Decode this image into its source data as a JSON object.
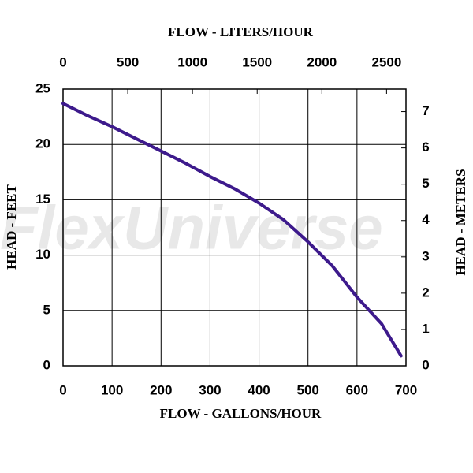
{
  "chart_data": {
    "type": "line",
    "x_label": "FLOW - GALLONS/HOUR",
    "x2_label": "FLOW - LITERS/HOUR",
    "y_label": "HEAD - FEET",
    "y2_label": "HEAD - METERS",
    "watermark": "FlexUniverse",
    "xlim": [
      0,
      700
    ],
    "xticks": [
      0,
      100,
      200,
      300,
      400,
      500,
      600,
      700
    ],
    "x2lim": [
      0,
      2650
    ],
    "x2ticks": [
      0,
      500,
      1000,
      1500,
      2000,
      2500
    ],
    "ylim": [
      0,
      25
    ],
    "yticks": [
      0,
      5,
      10,
      15,
      20,
      25
    ],
    "y2lim": [
      0,
      7.62
    ],
    "y2ticks": [
      0,
      1,
      2,
      3,
      4,
      5,
      6,
      7
    ],
    "grid": true,
    "x": [
      0,
      50,
      100,
      150,
      200,
      250,
      300,
      350,
      400,
      450,
      500,
      550,
      600,
      650,
      690
    ],
    "values": [
      23.7,
      22.6,
      21.6,
      20.5,
      19.4,
      18.3,
      17.1,
      16.0,
      14.7,
      13.2,
      11.2,
      9.0,
      6.2,
      3.8,
      0.9
    ],
    "color": "#3d1a8c"
  }
}
